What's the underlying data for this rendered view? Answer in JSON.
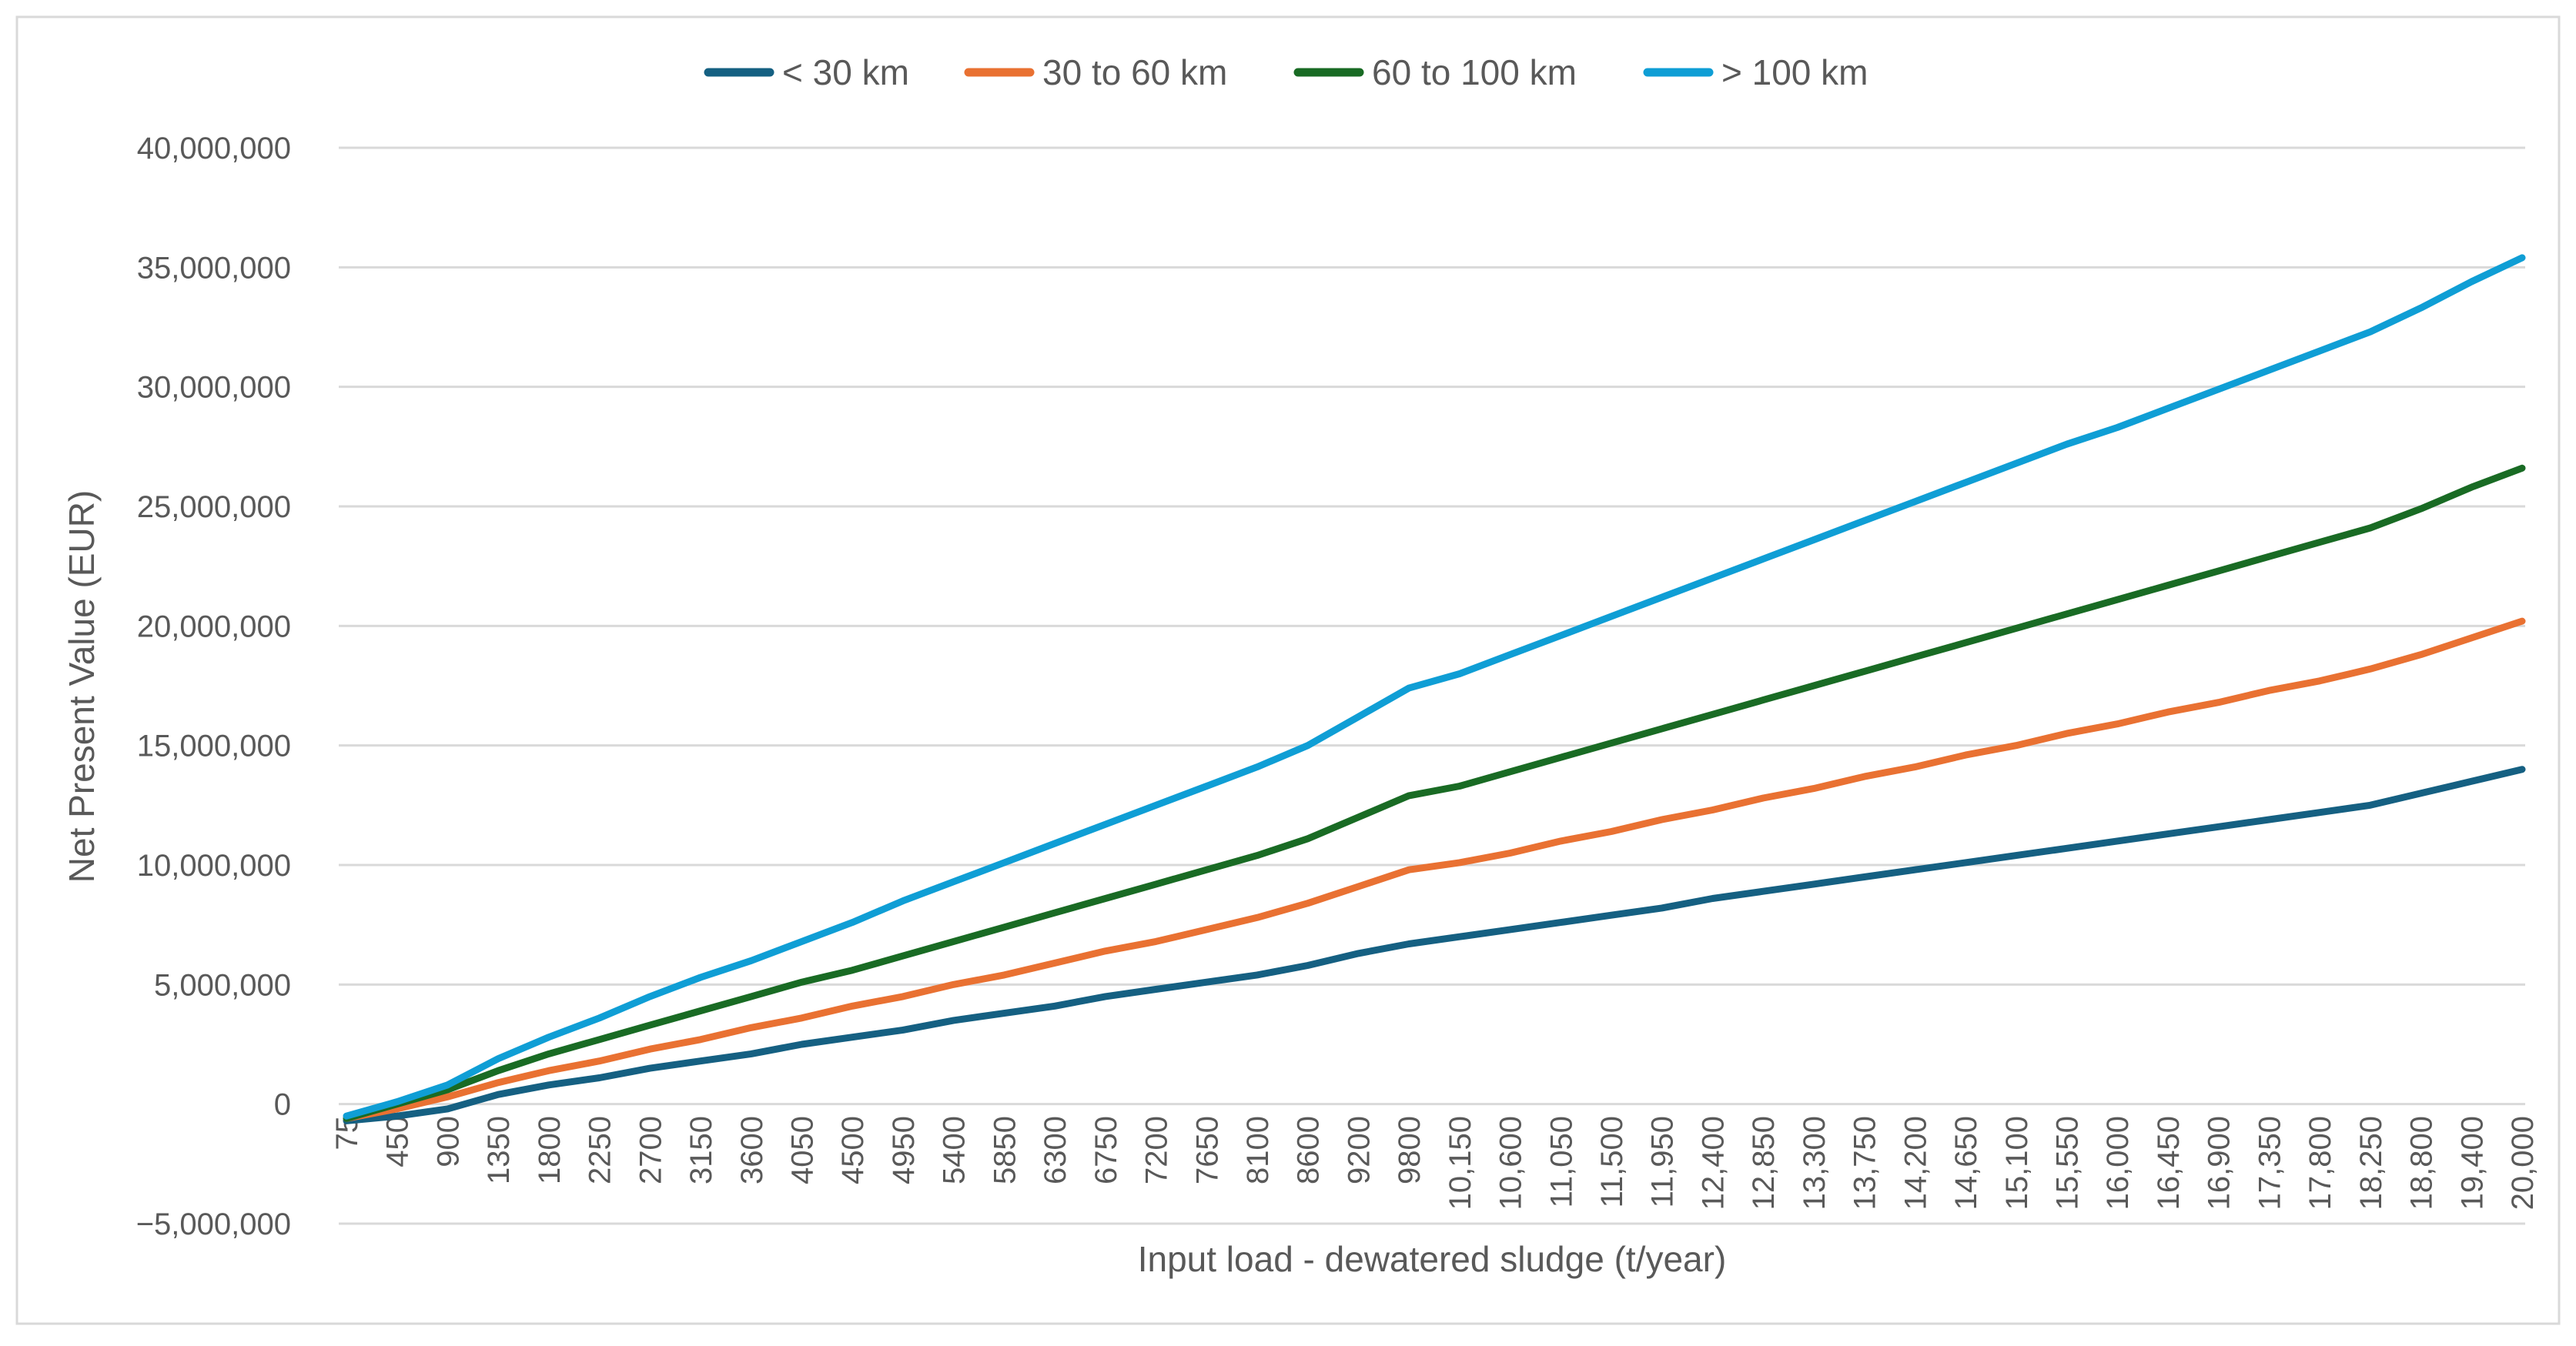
{
  "chart_data": {
    "type": "line",
    "title": "",
    "xlabel": "Input load - dewatered sludge (t/year)",
    "ylabel": "Net Present Value (EUR)",
    "ylim": [
      -5000000,
      40000000
    ],
    "yticks": [
      -5000000,
      0,
      5000000,
      10000000,
      15000000,
      20000000,
      25000000,
      30000000,
      35000000,
      40000000
    ],
    "ytick_labels": [
      "−5,000,000",
      "0",
      "5,000,000",
      "10,000,000",
      "15,000,000",
      "20,000,000",
      "25,000,000",
      "30,000,000",
      "35,000,000",
      "40,000,000"
    ],
    "grid": true,
    "legend_position": "top",
    "categories": [
      "75",
      "450",
      "900",
      "1350",
      "1800",
      "2250",
      "2700",
      "3150",
      "3600",
      "4050",
      "4500",
      "4950",
      "5400",
      "5850",
      "6300",
      "6750",
      "7200",
      "7650",
      "8100",
      "8600",
      "9200",
      "9800",
      "10,150",
      "10,600",
      "11,050",
      "11,500",
      "11,950",
      "12,400",
      "12,850",
      "13,300",
      "13,750",
      "14,200",
      "14,650",
      "15,100",
      "15,550",
      "16,000",
      "16,450",
      "16,900",
      "17,350",
      "17,800",
      "18,250",
      "18,800",
      "19,400",
      "20,000"
    ],
    "series": [
      {
        "name": "< 30 km",
        "color": "#156082",
        "values": [
          -0.7,
          -0.5,
          -0.2,
          0.4,
          0.8,
          1.1,
          1.5,
          1.8,
          2.1,
          2.5,
          2.8,
          3.1,
          3.5,
          3.8,
          4.1,
          4.5,
          4.8,
          5.1,
          5.4,
          5.8,
          6.3,
          6.7,
          7.0,
          7.3,
          7.6,
          7.9,
          8.2,
          8.6,
          8.9,
          9.2,
          9.5,
          9.8,
          10.1,
          10.4,
          10.7,
          11.0,
          11.3,
          11.6,
          11.9,
          12.2,
          12.5,
          13.0,
          13.5,
          14.0
        ]
      },
      {
        "name": "30 to 60 km",
        "color": "#E97132",
        "values": [
          -0.6,
          -0.2,
          0.3,
          0.9,
          1.4,
          1.8,
          2.3,
          2.7,
          3.2,
          3.6,
          4.1,
          4.5,
          5.0,
          5.4,
          5.9,
          6.4,
          6.8,
          7.3,
          7.8,
          8.4,
          9.1,
          9.8,
          10.1,
          10.5,
          11.0,
          11.4,
          11.9,
          12.3,
          12.8,
          13.2,
          13.7,
          14.1,
          14.6,
          15.0,
          15.5,
          15.9,
          16.4,
          16.8,
          17.3,
          17.7,
          18.2,
          18.8,
          19.5,
          20.2
        ]
      },
      {
        "name": "60 to 100 km",
        "color": "#196B24",
        "values": [
          -0.6,
          0.0,
          0.6,
          1.4,
          2.1,
          2.7,
          3.3,
          3.9,
          4.5,
          5.1,
          5.6,
          6.2,
          6.8,
          7.4,
          8.0,
          8.6,
          9.2,
          9.8,
          10.4,
          11.1,
          12.0,
          12.9,
          13.3,
          13.9,
          14.5,
          15.1,
          15.7,
          16.3,
          16.9,
          17.5,
          18.1,
          18.7,
          19.3,
          19.9,
          20.5,
          21.1,
          21.7,
          22.3,
          22.9,
          23.5,
          24.1,
          24.9,
          25.8,
          26.6
        ]
      },
      {
        "name": "> 100 km",
        "color": "#0F9ED5",
        "values": [
          -0.5,
          0.1,
          0.8,
          1.9,
          2.8,
          3.6,
          4.5,
          5.3,
          6.0,
          6.8,
          7.6,
          8.5,
          9.3,
          10.1,
          10.9,
          11.7,
          12.5,
          13.3,
          14.1,
          15.0,
          16.2,
          17.4,
          18.0,
          18.8,
          19.6,
          20.4,
          21.2,
          22.0,
          22.8,
          23.6,
          24.4,
          25.2,
          26.0,
          26.8,
          27.6,
          28.3,
          29.1,
          29.9,
          30.7,
          31.5,
          32.3,
          33.3,
          34.4,
          35.4
        ]
      }
    ],
    "values_unit": "million EUR"
  }
}
